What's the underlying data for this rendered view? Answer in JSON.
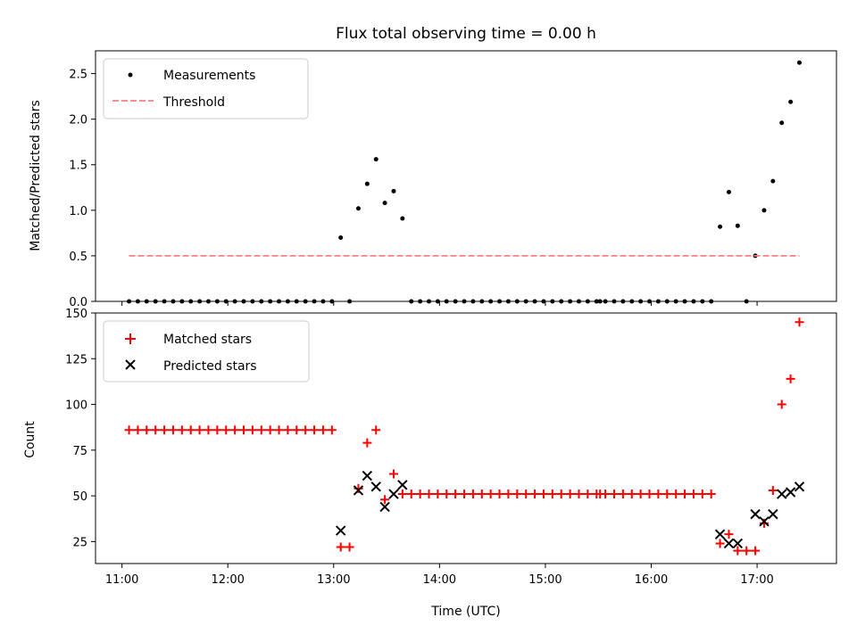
{
  "chart_data": [
    {
      "type": "scatter",
      "title": "Flux total observing time = 0.00 h",
      "xlabel": "",
      "ylabel": "Matched/Predicted stars",
      "xlim": [
        "10:45",
        "17:45"
      ],
      "ylim": [
        0,
        2.75
      ],
      "x_ticks": [
        "11:00",
        "12:00",
        "13:00",
        "14:00",
        "15:00",
        "16:00",
        "17:00"
      ],
      "y_ticks": [
        "0.0",
        "0.5",
        "1.0",
        "1.5",
        "2.0",
        "2.5"
      ],
      "legend_position": "top-left",
      "series": [
        {
          "name": "Measurements",
          "marker": "dot",
          "color": "#000000",
          "points": [
            [
              "11:04",
              0
            ],
            [
              "11:09",
              0
            ],
            [
              "11:14",
              0
            ],
            [
              "11:19",
              0
            ],
            [
              "11:24",
              0
            ],
            [
              "11:29",
              0
            ],
            [
              "11:34",
              0
            ],
            [
              "11:39",
              0
            ],
            [
              "11:44",
              0
            ],
            [
              "11:49",
              0
            ],
            [
              "11:54",
              0
            ],
            [
              "11:59",
              0
            ],
            [
              "12:04",
              0
            ],
            [
              "12:09",
              0
            ],
            [
              "12:14",
              0
            ],
            [
              "12:19",
              0
            ],
            [
              "12:24",
              0
            ],
            [
              "12:29",
              0
            ],
            [
              "12:34",
              0
            ],
            [
              "12:39",
              0
            ],
            [
              "12:44",
              0
            ],
            [
              "12:49",
              0
            ],
            [
              "12:54",
              0
            ],
            [
              "12:59",
              0
            ],
            [
              "13:04",
              0.7
            ],
            [
              "13:09",
              0
            ],
            [
              "13:14",
              1.02
            ],
            [
              "13:19",
              1.29
            ],
            [
              "13:24",
              1.56
            ],
            [
              "13:29",
              1.08
            ],
            [
              "13:34",
              1.21
            ],
            [
              "13:39",
              0.91
            ],
            [
              "13:44",
              0
            ],
            [
              "13:49",
              0
            ],
            [
              "13:54",
              0
            ],
            [
              "13:59",
              0
            ],
            [
              "14:04",
              0
            ],
            [
              "14:09",
              0
            ],
            [
              "14:14",
              0
            ],
            [
              "14:19",
              0
            ],
            [
              "14:24",
              0
            ],
            [
              "14:29",
              0
            ],
            [
              "14:34",
              0
            ],
            [
              "14:39",
              0
            ],
            [
              "14:44",
              0
            ],
            [
              "14:49",
              0
            ],
            [
              "14:54",
              0
            ],
            [
              "14:59",
              0
            ],
            [
              "15:04",
              0
            ],
            [
              "15:09",
              0
            ],
            [
              "15:14",
              0
            ],
            [
              "15:19",
              0
            ],
            [
              "15:24",
              0
            ],
            [
              "15:29",
              0
            ],
            [
              "15:31",
              0
            ],
            [
              "15:34",
              0
            ],
            [
              "15:39",
              0
            ],
            [
              "15:44",
              0
            ],
            [
              "15:49",
              0
            ],
            [
              "15:54",
              0
            ],
            [
              "15:59",
              0
            ],
            [
              "16:04",
              0
            ],
            [
              "16:09",
              0
            ],
            [
              "16:14",
              0
            ],
            [
              "16:19",
              0
            ],
            [
              "16:24",
              0
            ],
            [
              "16:29",
              0
            ],
            [
              "16:34",
              0
            ],
            [
              "16:39",
              0.82
            ],
            [
              "16:44",
              1.2
            ],
            [
              "16:49",
              0.83
            ],
            [
              "16:54",
              0
            ],
            [
              "16:59",
              0.5
            ],
            [
              "17:04",
              1.0
            ],
            [
              "17:09",
              1.32
            ],
            [
              "17:14",
              1.96
            ],
            [
              "17:19",
              2.19
            ],
            [
              "17:24",
              2.62
            ]
          ]
        },
        {
          "name": "Threshold",
          "marker": "dashed-line",
          "color": "#ff7f7f",
          "points": [
            [
              "11:04",
              0.5
            ],
            [
              "17:24",
              0.5
            ]
          ]
        }
      ]
    },
    {
      "type": "scatter",
      "title": "",
      "xlabel": "Time (UTC)",
      "ylabel": "Count",
      "xlim": [
        "10:45",
        "17:45"
      ],
      "ylim": [
        13,
        150
      ],
      "x_ticks": [
        "11:00",
        "12:00",
        "13:00",
        "14:00",
        "15:00",
        "16:00",
        "17:00"
      ],
      "y_ticks": [
        "25",
        "50",
        "75",
        "100",
        "125",
        "150"
      ],
      "legend_position": "top-left",
      "series": [
        {
          "name": "Matched stars",
          "marker": "plus",
          "color": "#ff0000",
          "points": [
            [
              "11:04",
              86
            ],
            [
              "11:09",
              86
            ],
            [
              "11:14",
              86
            ],
            [
              "11:19",
              86
            ],
            [
              "11:24",
              86
            ],
            [
              "11:29",
              86
            ],
            [
              "11:34",
              86
            ],
            [
              "11:39",
              86
            ],
            [
              "11:44",
              86
            ],
            [
              "11:49",
              86
            ],
            [
              "11:54",
              86
            ],
            [
              "11:59",
              86
            ],
            [
              "12:04",
              86
            ],
            [
              "12:09",
              86
            ],
            [
              "12:14",
              86
            ],
            [
              "12:19",
              86
            ],
            [
              "12:24",
              86
            ],
            [
              "12:29",
              86
            ],
            [
              "12:34",
              86
            ],
            [
              "12:39",
              86
            ],
            [
              "12:44",
              86
            ],
            [
              "12:49",
              86
            ],
            [
              "12:54",
              86
            ],
            [
              "12:59",
              86
            ],
            [
              "13:04",
              22
            ],
            [
              "13:09",
              22
            ],
            [
              "13:14",
              54
            ],
            [
              "13:19",
              79
            ],
            [
              "13:24",
              86
            ],
            [
              "13:29",
              48
            ],
            [
              "13:34",
              62
            ],
            [
              "13:39",
              51
            ],
            [
              "13:44",
              51
            ],
            [
              "13:49",
              51
            ],
            [
              "13:54",
              51
            ],
            [
              "13:59",
              51
            ],
            [
              "14:04",
              51
            ],
            [
              "14:09",
              51
            ],
            [
              "14:14",
              51
            ],
            [
              "14:19",
              51
            ],
            [
              "14:24",
              51
            ],
            [
              "14:29",
              51
            ],
            [
              "14:34",
              51
            ],
            [
              "14:39",
              51
            ],
            [
              "14:44",
              51
            ],
            [
              "14:49",
              51
            ],
            [
              "14:54",
              51
            ],
            [
              "14:59",
              51
            ],
            [
              "15:04",
              51
            ],
            [
              "15:09",
              51
            ],
            [
              "15:14",
              51
            ],
            [
              "15:19",
              51
            ],
            [
              "15:24",
              51
            ],
            [
              "15:29",
              51
            ],
            [
              "15:31",
              51
            ],
            [
              "15:34",
              51
            ],
            [
              "15:39",
              51
            ],
            [
              "15:44",
              51
            ],
            [
              "15:49",
              51
            ],
            [
              "15:54",
              51
            ],
            [
              "15:59",
              51
            ],
            [
              "16:04",
              51
            ],
            [
              "16:09",
              51
            ],
            [
              "16:14",
              51
            ],
            [
              "16:19",
              51
            ],
            [
              "16:24",
              51
            ],
            [
              "16:29",
              51
            ],
            [
              "16:34",
              51
            ],
            [
              "16:39",
              24
            ],
            [
              "16:44",
              29
            ],
            [
              "16:49",
              20
            ],
            [
              "16:54",
              20
            ],
            [
              "16:59",
              20
            ],
            [
              "17:04",
              35
            ],
            [
              "17:09",
              53
            ],
            [
              "17:14",
              100
            ],
            [
              "17:19",
              114
            ],
            [
              "17:24",
              145
            ]
          ]
        },
        {
          "name": "Predicted stars",
          "marker": "x",
          "color": "#000000",
          "points": [
            [
              "13:04",
              31
            ],
            [
              "13:14",
              53
            ],
            [
              "13:19",
              61
            ],
            [
              "13:24",
              55
            ],
            [
              "13:29",
              44
            ],
            [
              "13:34",
              51
            ],
            [
              "13:39",
              56
            ],
            [
              "16:39",
              29
            ],
            [
              "16:44",
              24
            ],
            [
              "16:49",
              24
            ],
            [
              "16:59",
              40
            ],
            [
              "17:04",
              36
            ],
            [
              "17:09",
              40
            ],
            [
              "17:14",
              51
            ],
            [
              "17:19",
              52
            ],
            [
              "17:24",
              55
            ]
          ]
        }
      ]
    }
  ]
}
